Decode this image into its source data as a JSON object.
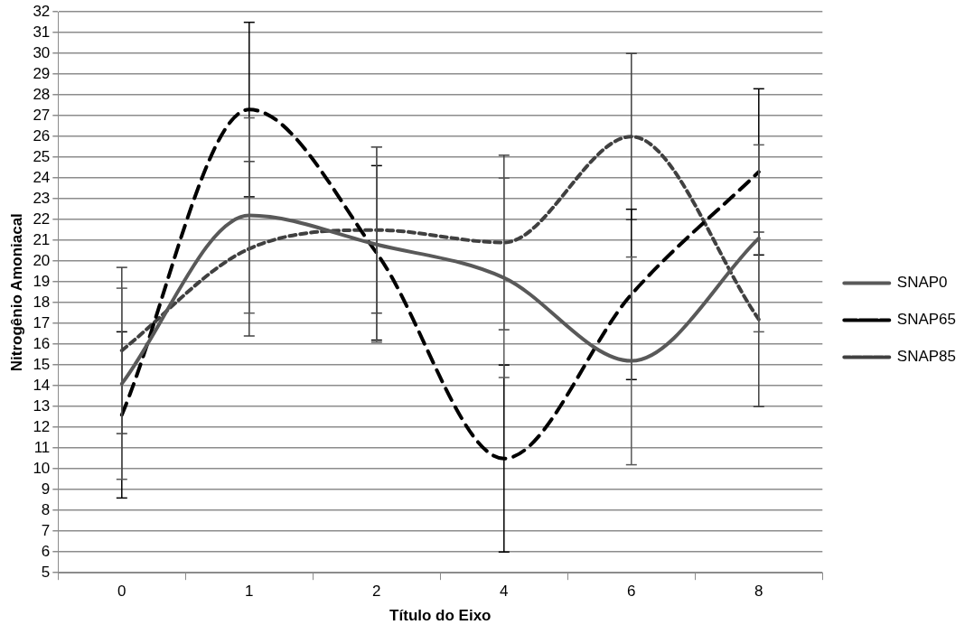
{
  "chart_data": {
    "type": "line",
    "xlabel": "Título do Eixo",
    "ylabel": "Nitrogênio Amoniacal",
    "categories": [
      "0",
      "1",
      "2",
      "4",
      "6",
      "8"
    ],
    "series": [
      {
        "name": "SNAP0",
        "color": "#595959",
        "line_style": "solid",
        "values": [
          14.1,
          22.2,
          20.8,
          19.2,
          15.2,
          21.1
        ],
        "errors": [
          4.6,
          4.7,
          4.7,
          4.8,
          5.0,
          4.5
        ]
      },
      {
        "name": "SNAP65",
        "color": "#000000",
        "line_style": "dashed",
        "values": [
          12.6,
          27.3,
          20.4,
          10.5,
          18.4,
          24.3
        ],
        "errors": [
          4.0,
          4.2,
          4.2,
          4.5,
          4.1,
          4.0
        ]
      },
      {
        "name": "SNAP85",
        "color": "#404040",
        "line_style": "dotted",
        "values": [
          15.7,
          20.6,
          21.5,
          20.9,
          26.0,
          17.2
        ],
        "errors": [
          4.0,
          4.2,
          4.0,
          4.2,
          4.0,
          4.2
        ]
      }
    ],
    "ylim": [
      5,
      32
    ],
    "yticks": [
      5,
      6,
      7,
      8,
      9,
      10,
      11,
      12,
      13,
      14,
      15,
      16,
      17,
      18,
      19,
      20,
      21,
      22,
      23,
      24,
      25,
      26,
      27,
      28,
      29,
      30,
      31,
      32
    ],
    "grid": "y",
    "legend": "right",
    "marker": "none"
  }
}
